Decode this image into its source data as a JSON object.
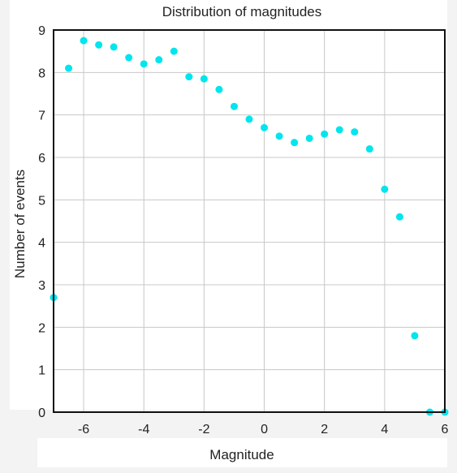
{
  "chart_data": {
    "type": "scatter",
    "title": "Distribution of magnitudes",
    "xlabel": "Magnitude",
    "ylabel": "Number of events",
    "xlim": [
      -7,
      6
    ],
    "ylim": [
      0,
      9
    ],
    "xticks": [
      -6,
      -4,
      -2,
      0,
      2,
      4,
      6
    ],
    "yticks": [
      0,
      1,
      2,
      3,
      4,
      5,
      6,
      7,
      8,
      9
    ],
    "grid": true,
    "marker_color": "#00e5ee",
    "points": [
      {
        "x": -7.0,
        "y": 2.7
      },
      {
        "x": -6.5,
        "y": 8.1
      },
      {
        "x": -6.0,
        "y": 8.75
      },
      {
        "x": -5.5,
        "y": 8.65
      },
      {
        "x": -5.0,
        "y": 8.6
      },
      {
        "x": -4.5,
        "y": 8.35
      },
      {
        "x": -4.0,
        "y": 8.2
      },
      {
        "x": -3.5,
        "y": 8.3
      },
      {
        "x": -3.0,
        "y": 8.5
      },
      {
        "x": -2.5,
        "y": 7.9
      },
      {
        "x": -2.0,
        "y": 7.85
      },
      {
        "x": -1.5,
        "y": 7.6
      },
      {
        "x": -1.0,
        "y": 7.2
      },
      {
        "x": -0.5,
        "y": 6.9
      },
      {
        "x": 0.0,
        "y": 6.7
      },
      {
        "x": 0.5,
        "y": 6.5
      },
      {
        "x": 1.0,
        "y": 6.35
      },
      {
        "x": 1.5,
        "y": 6.45
      },
      {
        "x": 2.0,
        "y": 6.55
      },
      {
        "x": 2.5,
        "y": 6.65
      },
      {
        "x": 3.0,
        "y": 6.6
      },
      {
        "x": 3.5,
        "y": 6.2
      },
      {
        "x": 4.0,
        "y": 5.25
      },
      {
        "x": 4.5,
        "y": 4.6
      },
      {
        "x": 5.0,
        "y": 1.8
      },
      {
        "x": 5.5,
        "y": 0.0
      },
      {
        "x": 6.0,
        "y": 0.0
      }
    ]
  }
}
